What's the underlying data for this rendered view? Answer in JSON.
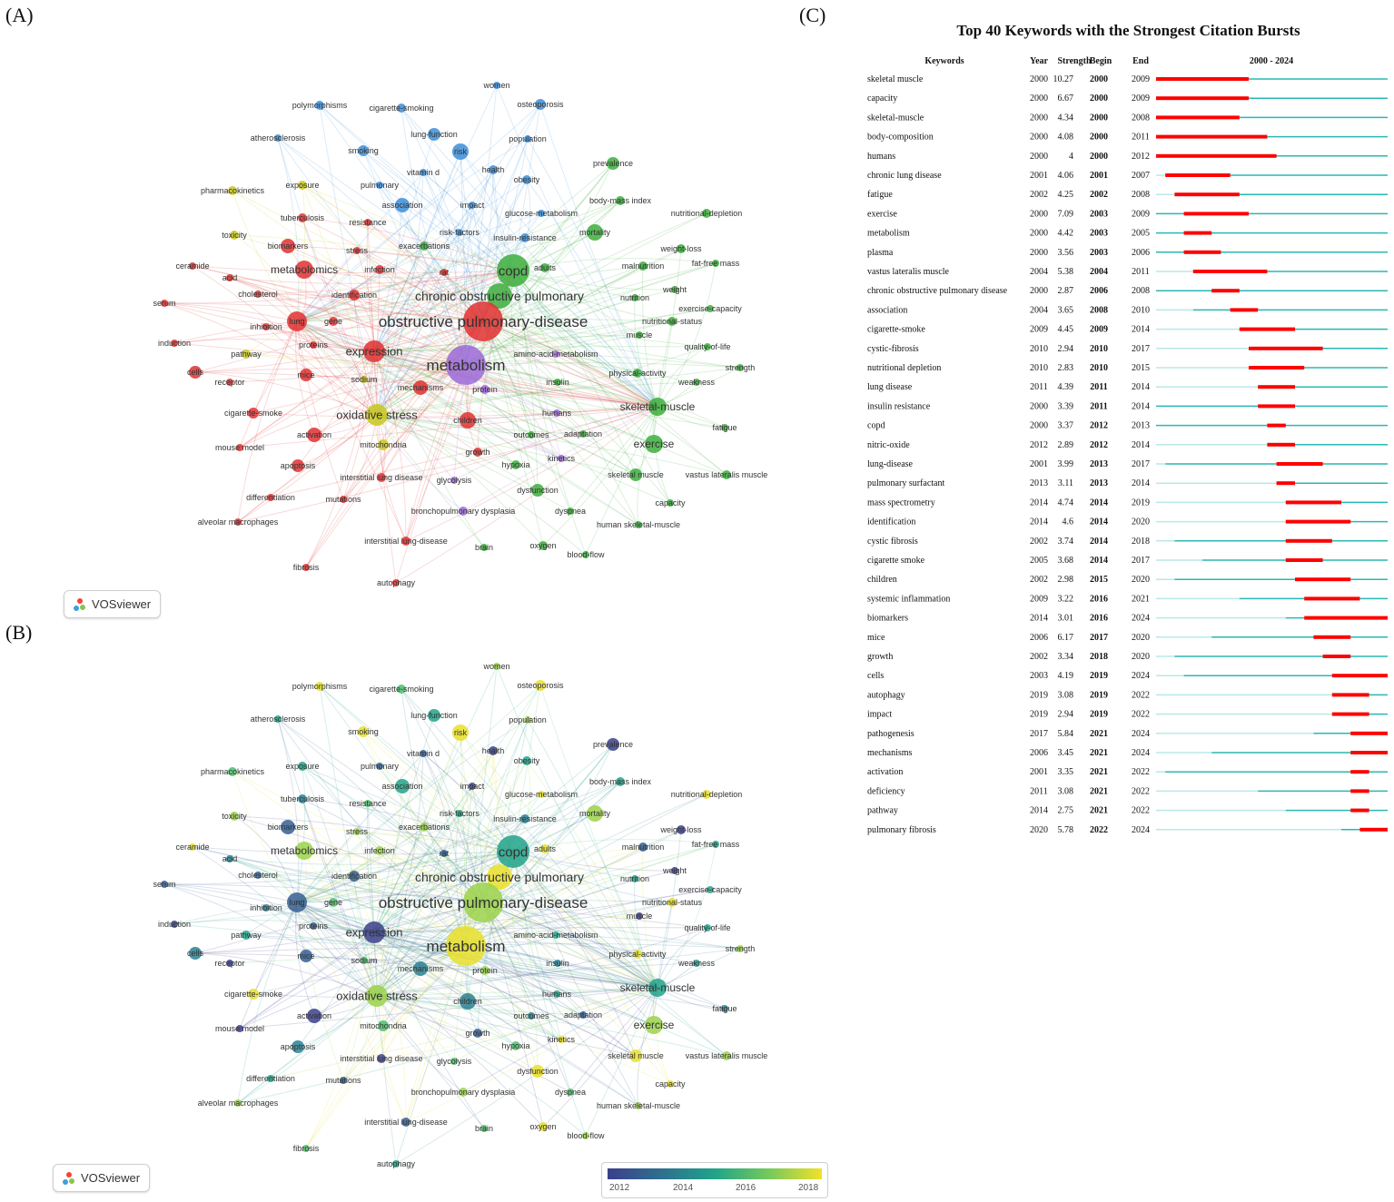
{
  "panels": {
    "a": "(A)",
    "b": "(B)",
    "c": "(C)"
  },
  "vosviewer_label": "VOSviewer",
  "network_a": {
    "terms": [
      {
        "label": "polymorphisms",
        "cluster": "blue"
      },
      {
        "label": "cigarette-smoking",
        "cluster": "blue"
      },
      {
        "label": "women",
        "cluster": "blue"
      },
      {
        "label": "osteoporosis",
        "cluster": "blue"
      },
      {
        "label": "atherosclerosis",
        "cluster": "blue"
      },
      {
        "label": "lung-function",
        "cluster": "blue"
      },
      {
        "label": "population",
        "cluster": "blue"
      },
      {
        "label": "smoking",
        "cluster": "blue"
      },
      {
        "label": "risk",
        "cluster": "blue"
      },
      {
        "label": "vitamin d",
        "cluster": "blue"
      },
      {
        "label": "health",
        "cluster": "blue"
      },
      {
        "label": "obesity",
        "cluster": "blue"
      },
      {
        "label": "prevalence",
        "cluster": "green"
      },
      {
        "label": "pharmacokinetics",
        "cluster": "yellow"
      },
      {
        "label": "exposure",
        "cluster": "yellow"
      },
      {
        "label": "pulmonary",
        "cluster": "blue"
      },
      {
        "label": "body-mass index",
        "cluster": "green"
      },
      {
        "label": "association",
        "cluster": "blue"
      },
      {
        "label": "impact",
        "cluster": "blue"
      },
      {
        "label": "glucose-metabolism",
        "cluster": "blue"
      },
      {
        "label": "nutritional-depletion",
        "cluster": "green"
      },
      {
        "label": "tuberculosis",
        "cluster": "red"
      },
      {
        "label": "resistance",
        "cluster": "red"
      },
      {
        "label": "risk-factors",
        "cluster": "blue"
      },
      {
        "label": "toxicity",
        "cluster": "yellow"
      },
      {
        "label": "insulin-resistance",
        "cluster": "blue"
      },
      {
        "label": "mortality",
        "cluster": "green"
      },
      {
        "label": "biomarkers",
        "cluster": "red"
      },
      {
        "label": "stress",
        "cluster": "red"
      },
      {
        "label": "exacerbations",
        "cluster": "green"
      },
      {
        "label": "weight-loss",
        "cluster": "green"
      },
      {
        "label": "ceramide",
        "cluster": "red"
      },
      {
        "label": "fat-free mass",
        "cluster": "green"
      },
      {
        "label": "metabolomics",
        "cluster": "red"
      },
      {
        "label": "infection",
        "cluster": "red"
      },
      {
        "label": "rat",
        "cluster": "red"
      },
      {
        "label": "copd",
        "cluster": "green"
      },
      {
        "label": "adults",
        "cluster": "green"
      },
      {
        "label": "malnutrition",
        "cluster": "green"
      },
      {
        "label": "acid",
        "cluster": "red"
      },
      {
        "label": "serum",
        "cluster": "red"
      },
      {
        "label": "cholesterol",
        "cluster": "red"
      },
      {
        "label": "identification",
        "cluster": "red"
      },
      {
        "label": "chronic obstructive pulmonary",
        "cluster": "green"
      },
      {
        "label": "nutrition",
        "cluster": "green"
      },
      {
        "label": "weight",
        "cluster": "green"
      },
      {
        "label": "exercise-capacity",
        "cluster": "green"
      },
      {
        "label": "lung",
        "cluster": "red"
      },
      {
        "label": "gene",
        "cluster": "red"
      },
      {
        "label": "obstructive pulmonary-disease",
        "cluster": "red"
      },
      {
        "label": "inhibition",
        "cluster": "red"
      },
      {
        "label": "nutritional-status",
        "cluster": "green"
      },
      {
        "label": "muscle",
        "cluster": "green"
      },
      {
        "label": "induction",
        "cluster": "red"
      },
      {
        "label": "proteins",
        "cluster": "red"
      },
      {
        "label": "pathway",
        "cluster": "yellow"
      },
      {
        "label": "expression",
        "cluster": "red"
      },
      {
        "label": "amino-acid-metabolism",
        "cluster": "purple"
      },
      {
        "label": "quality-of-life",
        "cluster": "green"
      },
      {
        "label": "metabolism",
        "cluster": "purple"
      },
      {
        "label": "cells",
        "cluster": "red"
      },
      {
        "label": "mice",
        "cluster": "red"
      },
      {
        "label": "sodium",
        "cluster": "yellow"
      },
      {
        "label": "receptor",
        "cluster": "red"
      },
      {
        "label": "physical-activity",
        "cluster": "green"
      },
      {
        "label": "strength",
        "cluster": "green"
      },
      {
        "label": "insulin",
        "cluster": "green"
      },
      {
        "label": "mechanisms",
        "cluster": "red"
      },
      {
        "label": "protein",
        "cluster": "purple"
      },
      {
        "label": "weakness",
        "cluster": "green"
      },
      {
        "label": "skeletal-muscle",
        "cluster": "green"
      },
      {
        "label": "cigarette-smoke",
        "cluster": "red"
      },
      {
        "label": "oxidative stress",
        "cluster": "yellow"
      },
      {
        "label": "humans",
        "cluster": "purple"
      },
      {
        "label": "children",
        "cluster": "red"
      },
      {
        "label": "fatigue",
        "cluster": "green"
      },
      {
        "label": "activation",
        "cluster": "red"
      },
      {
        "label": "outcomes",
        "cluster": "green"
      },
      {
        "label": "adaptation",
        "cluster": "green"
      },
      {
        "label": "mitochondria",
        "cluster": "yellow"
      },
      {
        "label": "exercise",
        "cluster": "green"
      },
      {
        "label": "mouse model",
        "cluster": "red"
      },
      {
        "label": "growth",
        "cluster": "red"
      },
      {
        "label": "kinetics",
        "cluster": "purple"
      },
      {
        "label": "apoptosis",
        "cluster": "red"
      },
      {
        "label": "hypoxia",
        "cluster": "green"
      },
      {
        "label": "interstitial lung disease",
        "cluster": "red"
      },
      {
        "label": "glycolysis",
        "cluster": "purple"
      },
      {
        "label": "skeletal muscle",
        "cluster": "green"
      },
      {
        "label": "vastus lateralis muscle",
        "cluster": "green"
      },
      {
        "label": "differentiation",
        "cluster": "red"
      },
      {
        "label": "mutations",
        "cluster": "red"
      },
      {
        "label": "dysfunction",
        "cluster": "green"
      },
      {
        "label": "capacity",
        "cluster": "green"
      },
      {
        "label": "bronchopulmonary dysplasia",
        "cluster": "purple"
      },
      {
        "label": "dyspnea",
        "cluster": "green"
      },
      {
        "label": "alveolar macrophages",
        "cluster": "red"
      },
      {
        "label": "human skeletal-muscle",
        "cluster": "green"
      },
      {
        "label": "interstitial lung-disease",
        "cluster": "red"
      },
      {
        "label": "oxygen",
        "cluster": "green"
      },
      {
        "label": "brain",
        "cluster": "green"
      },
      {
        "label": "blood-flow",
        "cluster": "green"
      },
      {
        "label": "fibrosis",
        "cluster": "red"
      },
      {
        "label": "autophagy",
        "cluster": "red"
      }
    ]
  },
  "network_b": {
    "colorbar_ticks": [
      "2012",
      "2014",
      "2016",
      "2018"
    ]
  },
  "chart_data": {
    "type": "table",
    "title": "Top 40 Keywords with the Strongest Citation Bursts",
    "columns": [
      "Keywords",
      "Year",
      "Strength",
      "Begin",
      "End",
      "2000 - 2024"
    ],
    "range": [
      2000,
      2024
    ],
    "colors": {
      "burst": "#ff0000",
      "active": "#2ab7b3",
      "inactive": "#b9e8e6"
    },
    "rows": [
      {
        "keyword": "skeletal muscle",
        "year": "2000",
        "strength": "10.27",
        "begin": "2000",
        "end": "2009"
      },
      {
        "keyword": "capacity",
        "year": "2000",
        "strength": "6.67",
        "begin": "2000",
        "end": "2009"
      },
      {
        "keyword": "skeletal-muscle",
        "year": "2000",
        "strength": "4.34",
        "begin": "2000",
        "end": "2008"
      },
      {
        "keyword": "body-composition",
        "year": "2000",
        "strength": "4.08",
        "begin": "2000",
        "end": "2011"
      },
      {
        "keyword": "humans",
        "year": "2000",
        "strength": "4",
        "begin": "2000",
        "end": "2012"
      },
      {
        "keyword": "chronic lung disease",
        "year": "2001",
        "strength": "4.06",
        "begin": "2001",
        "end": "2007"
      },
      {
        "keyword": "fatigue",
        "year": "2002",
        "strength": "4.25",
        "begin": "2002",
        "end": "2008"
      },
      {
        "keyword": "exercise",
        "year": "2000",
        "strength": "7.09",
        "begin": "2003",
        "end": "2009"
      },
      {
        "keyword": "metabolism",
        "year": "2000",
        "strength": "4.42",
        "begin": "2003",
        "end": "2005"
      },
      {
        "keyword": "plasma",
        "year": "2000",
        "strength": "3.56",
        "begin": "2003",
        "end": "2006"
      },
      {
        "keyword": "vastus lateralis muscle",
        "year": "2004",
        "strength": "5.38",
        "begin": "2004",
        "end": "2011"
      },
      {
        "keyword": "chronic obstructive pulmonary disease",
        "year": "2000",
        "strength": "2.87",
        "begin": "2006",
        "end": "2008"
      },
      {
        "keyword": "association",
        "year": "2004",
        "strength": "3.65",
        "begin": "2008",
        "end": "2010"
      },
      {
        "keyword": "cigarette-smoke",
        "year": "2009",
        "strength": "4.45",
        "begin": "2009",
        "end": "2014"
      },
      {
        "keyword": "cystic-fibrosis",
        "year": "2010",
        "strength": "2.94",
        "begin": "2010",
        "end": "2017"
      },
      {
        "keyword": "nutritional depletion",
        "year": "2010",
        "strength": "2.83",
        "begin": "2010",
        "end": "2015"
      },
      {
        "keyword": "lung disease",
        "year": "2011",
        "strength": "4.39",
        "begin": "2011",
        "end": "2014"
      },
      {
        "keyword": "insulin resistance",
        "year": "2000",
        "strength": "3.39",
        "begin": "2011",
        "end": "2014"
      },
      {
        "keyword": "copd",
        "year": "2000",
        "strength": "3.37",
        "begin": "2012",
        "end": "2013"
      },
      {
        "keyword": "nitric-oxide",
        "year": "2012",
        "strength": "2.89",
        "begin": "2012",
        "end": "2014"
      },
      {
        "keyword": "lung-disease",
        "year": "2001",
        "strength": "3.99",
        "begin": "2013",
        "end": "2017"
      },
      {
        "keyword": "pulmonary surfactant",
        "year": "2013",
        "strength": "3.11",
        "begin": "2013",
        "end": "2014"
      },
      {
        "keyword": "mass spectrometry",
        "year": "2014",
        "strength": "4.74",
        "begin": "2014",
        "end": "2019"
      },
      {
        "keyword": "identification",
        "year": "2014",
        "strength": "4.6",
        "begin": "2014",
        "end": "2020"
      },
      {
        "keyword": "cystic fibrosis",
        "year": "2002",
        "strength": "3.74",
        "begin": "2014",
        "end": "2018"
      },
      {
        "keyword": "cigarette smoke",
        "year": "2005",
        "strength": "3.68",
        "begin": "2014",
        "end": "2017"
      },
      {
        "keyword": "children",
        "year": "2002",
        "strength": "2.98",
        "begin": "2015",
        "end": "2020"
      },
      {
        "keyword": "systemic inflammation",
        "year": "2009",
        "strength": "3.22",
        "begin": "2016",
        "end": "2021"
      },
      {
        "keyword": "biomarkers",
        "year": "2014",
        "strength": "3.01",
        "begin": "2016",
        "end": "2024"
      },
      {
        "keyword": "mice",
        "year": "2006",
        "strength": "6.17",
        "begin": "2017",
        "end": "2020"
      },
      {
        "keyword": "growth",
        "year": "2002",
        "strength": "3.34",
        "begin": "2018",
        "end": "2020"
      },
      {
        "keyword": "cells",
        "year": "2003",
        "strength": "4.19",
        "begin": "2019",
        "end": "2024"
      },
      {
        "keyword": "autophagy",
        "year": "2019",
        "strength": "3.08",
        "begin": "2019",
        "end": "2022"
      },
      {
        "keyword": "impact",
        "year": "2019",
        "strength": "2.94",
        "begin": "2019",
        "end": "2022"
      },
      {
        "keyword": "pathogenesis",
        "year": "2017",
        "strength": "5.84",
        "begin": "2021",
        "end": "2024"
      },
      {
        "keyword": "mechanisms",
        "year": "2006",
        "strength": "3.45",
        "begin": "2021",
        "end": "2024"
      },
      {
        "keyword": "activation",
        "year": "2001",
        "strength": "3.35",
        "begin": "2021",
        "end": "2022"
      },
      {
        "keyword": "deficiency",
        "year": "2011",
        "strength": "3.08",
        "begin": "2021",
        "end": "2022"
      },
      {
        "keyword": "pathway",
        "year": "2014",
        "strength": "2.75",
        "begin": "2021",
        "end": "2022"
      },
      {
        "keyword": "pulmonary fibrosis",
        "year": "2020",
        "strength": "5.78",
        "begin": "2022",
        "end": "2024"
      }
    ]
  }
}
